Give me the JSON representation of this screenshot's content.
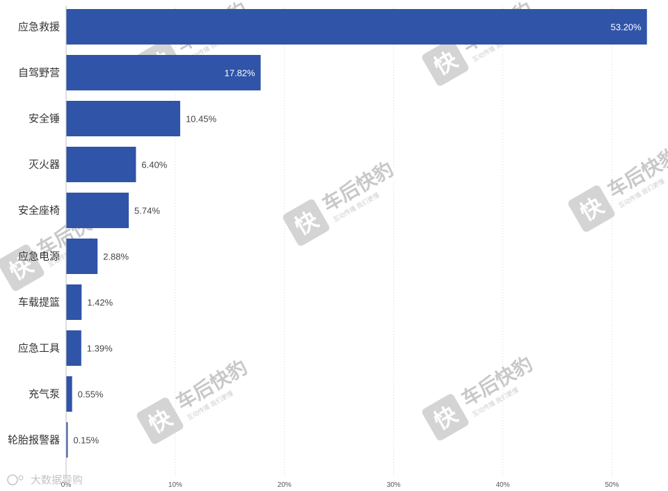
{
  "chart_data": {
    "type": "bar",
    "orientation": "horizontal",
    "categories": [
      "应急救援",
      "自驾野营",
      "安全锤",
      "灭火器",
      "安全座椅",
      "应急电源",
      "车载提篮",
      "应急工具",
      "充气泵",
      "轮胎报警器"
    ],
    "values": [
      53.2,
      17.82,
      10.45,
      6.4,
      5.74,
      2.88,
      1.42,
      1.39,
      0.55,
      0.15
    ],
    "value_labels": [
      "53.20%",
      "17.82%",
      "10.45%",
      "6.40%",
      "5.74%",
      "2.88%",
      "1.42%",
      "1.39%",
      "0.55%",
      "0.15%"
    ],
    "title": "",
    "xlabel": "",
    "ylabel": "",
    "xlim": [
      0,
      53.6
    ],
    "x_ticks": [
      0,
      10,
      20,
      30,
      40,
      50
    ],
    "x_tick_labels": [
      "0%",
      "10%",
      "20%",
      "30%",
      "40%",
      "50%"
    ],
    "grid": "vertical-dotted",
    "bar_color": "#2f54a8"
  },
  "watermark": {
    "brand": "车后快豹",
    "icon_char": "快",
    "slogan": "互动传播 我们更懂",
    "source": "大数据导购"
  }
}
